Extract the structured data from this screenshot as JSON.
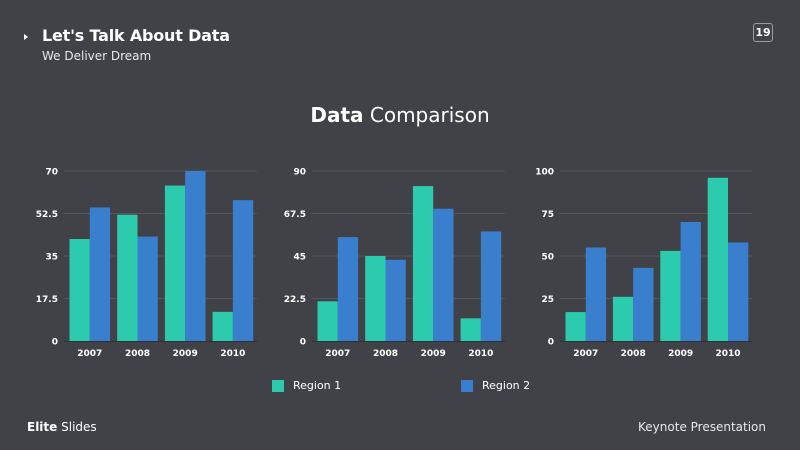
{
  "header": {
    "title": "Let's Talk About Data",
    "subtitle": "We Deliver Dream",
    "page_number": "19"
  },
  "main": {
    "title_bold": "Data",
    "title_regular": "Comparison"
  },
  "legend": [
    {
      "label": "Region 1",
      "color": "#2ccbae"
    },
    {
      "label": "Region 2",
      "color": "#3a7fcd"
    }
  ],
  "footer": {
    "brand_bold": "Elite",
    "brand_regular": "Slides",
    "right_text": "Keynote Presentation"
  },
  "colors": {
    "background": "#414247",
    "region1": "#2ccbae",
    "region2": "#3a7fcd",
    "grid": "#55565c"
  },
  "chart_data": [
    {
      "type": "bar",
      "title": "",
      "categories": [
        "2007",
        "2008",
        "2009",
        "2010"
      ],
      "series": [
        {
          "name": "Region 1",
          "values": [
            42,
            52,
            64,
            12
          ]
        },
        {
          "name": "Region 2",
          "values": [
            55,
            43,
            70,
            58
          ]
        }
      ],
      "ylim": [
        0,
        70
      ],
      "yticks": [
        "0",
        "17.5",
        "35",
        "52.5",
        "70"
      ],
      "grid": true,
      "legend": "bottom"
    },
    {
      "type": "bar",
      "title": "",
      "categories": [
        "2007",
        "2008",
        "2009",
        "2010"
      ],
      "series": [
        {
          "name": "Region 1",
          "values": [
            21,
            45,
            82,
            12
          ]
        },
        {
          "name": "Region 2",
          "values": [
            55,
            43,
            70,
            58
          ]
        }
      ],
      "ylim": [
        0,
        90
      ],
      "yticks": [
        "0",
        "22.5",
        "45",
        "67.5",
        "90"
      ],
      "grid": true,
      "legend": "bottom"
    },
    {
      "type": "bar",
      "title": "",
      "categories": [
        "2007",
        "2008",
        "2009",
        "2010"
      ],
      "series": [
        {
          "name": "Region 1",
          "values": [
            17,
            26,
            53,
            96
          ]
        },
        {
          "name": "Region 2",
          "values": [
            55,
            43,
            70,
            58
          ]
        }
      ],
      "ylim": [
        0,
        100
      ],
      "yticks": [
        "0",
        "25",
        "50",
        "75",
        "100"
      ],
      "grid": true,
      "legend": "bottom"
    }
  ]
}
